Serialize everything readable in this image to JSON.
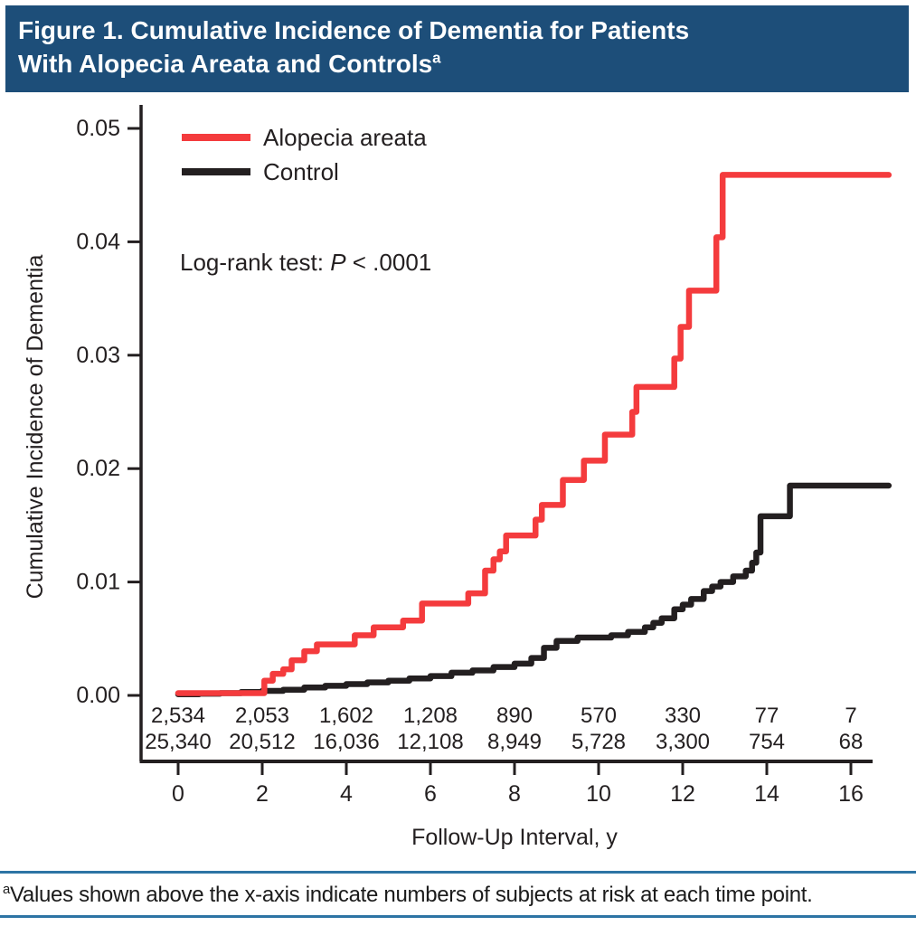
{
  "header": {
    "title": "Figure 1. Cumulative Incidence of Dementia for Patients With Alopecia Areata and Controls",
    "superscript": "a",
    "bg_color": "#1d4e79"
  },
  "footnote": {
    "superscript": "a",
    "text": "Values shown above the x-axis indicate numbers of subjects at risk at each time point.",
    "rule_color": "#2d74a4"
  },
  "chart_data": {
    "type": "line",
    "subtype": "step",
    "title": "",
    "xlabel": "Follow-Up Interval, y",
    "ylabel": "Cumulative Incidence of Dementia",
    "xlim": [
      0,
      16.9
    ],
    "ylim": [
      0,
      0.05
    ],
    "xticks": [
      0,
      2,
      4,
      6,
      8,
      10,
      12,
      14,
      16
    ],
    "yticks": [
      "0.00",
      "0.01",
      "0.02",
      "0.03",
      "0.04",
      "0.05"
    ],
    "grid": false,
    "legend_position": "top-left-inside",
    "annotation": {
      "prefix": "Log-rank test: ",
      "italic": "P",
      "suffix": " < .0001"
    },
    "legend": [
      {
        "label": "Alopecia areata",
        "color": "#f43b3d"
      },
      {
        "label": "Control",
        "color": "#231f20"
      }
    ],
    "series": [
      {
        "name": "Alopecia areata",
        "color": "#f43b3d",
        "points": [
          [
            0,
            0.0002
          ],
          [
            2.05,
            0.0013
          ],
          [
            2.25,
            0.0019
          ],
          [
            2.5,
            0.0023
          ],
          [
            2.7,
            0.0031
          ],
          [
            3.0,
            0.0039
          ],
          [
            3.3,
            0.0045
          ],
          [
            4.2,
            0.0053
          ],
          [
            4.65,
            0.006
          ],
          [
            5.35,
            0.0066
          ],
          [
            5.8,
            0.0081
          ],
          [
            6.9,
            0.009
          ],
          [
            7.3,
            0.011
          ],
          [
            7.5,
            0.012
          ],
          [
            7.65,
            0.0127
          ],
          [
            7.8,
            0.0141
          ],
          [
            8.5,
            0.0155
          ],
          [
            8.65,
            0.0168
          ],
          [
            9.15,
            0.019
          ],
          [
            9.65,
            0.0207
          ],
          [
            10.15,
            0.023
          ],
          [
            10.8,
            0.025
          ],
          [
            10.9,
            0.0272
          ],
          [
            11.8,
            0.0297
          ],
          [
            11.95,
            0.0325
          ],
          [
            12.15,
            0.0357
          ],
          [
            12.8,
            0.0404
          ],
          [
            12.95,
            0.0459
          ],
          [
            16.9,
            0.0459
          ]
        ]
      },
      {
        "name": "Control",
        "color": "#231f20",
        "points": [
          [
            0,
            0.0001
          ],
          [
            0.5,
            0.00015
          ],
          [
            1.0,
            0.0002
          ],
          [
            1.5,
            0.0003
          ],
          [
            2.0,
            0.0004
          ],
          [
            2.5,
            0.0005
          ],
          [
            3.0,
            0.0007
          ],
          [
            3.5,
            0.00085
          ],
          [
            4.0,
            0.001
          ],
          [
            4.5,
            0.00115
          ],
          [
            5.0,
            0.0013
          ],
          [
            5.5,
            0.0015
          ],
          [
            6.0,
            0.0017
          ],
          [
            6.5,
            0.002
          ],
          [
            7.0,
            0.0022
          ],
          [
            7.5,
            0.0025
          ],
          [
            8.0,
            0.0028
          ],
          [
            8.4,
            0.0033
          ],
          [
            8.7,
            0.0042
          ],
          [
            9.0,
            0.0048
          ],
          [
            9.5,
            0.0051
          ],
          [
            10.3,
            0.0053
          ],
          [
            10.7,
            0.0056
          ],
          [
            11.1,
            0.006
          ],
          [
            11.3,
            0.0064
          ],
          [
            11.5,
            0.0068
          ],
          [
            11.8,
            0.0076
          ],
          [
            12.0,
            0.008
          ],
          [
            12.2,
            0.0085
          ],
          [
            12.5,
            0.0092
          ],
          [
            12.7,
            0.0096
          ],
          [
            12.9,
            0.01
          ],
          [
            13.2,
            0.0105
          ],
          [
            13.5,
            0.011
          ],
          [
            13.65,
            0.0117
          ],
          [
            13.75,
            0.0126
          ],
          [
            13.85,
            0.0158
          ],
          [
            14.55,
            0.0185
          ],
          [
            16.9,
            0.0185
          ]
        ]
      }
    ],
    "at_risk": {
      "x": [
        0,
        2,
        4,
        6,
        8,
        10,
        12,
        14,
        16
      ],
      "rows": [
        {
          "name": "Alopecia areata",
          "color": "#f43b3d",
          "values": [
            "2,534",
            "2,053",
            "1,602",
            "1,208",
            "890",
            "570",
            "330",
            "77",
            "7"
          ]
        },
        {
          "name": "Control",
          "color": "#231f20",
          "values": [
            "25,340",
            "20,512",
            "16,036",
            "12,108",
            "8,949",
            "5,728",
            "3,300",
            "754",
            "68"
          ]
        }
      ]
    }
  }
}
